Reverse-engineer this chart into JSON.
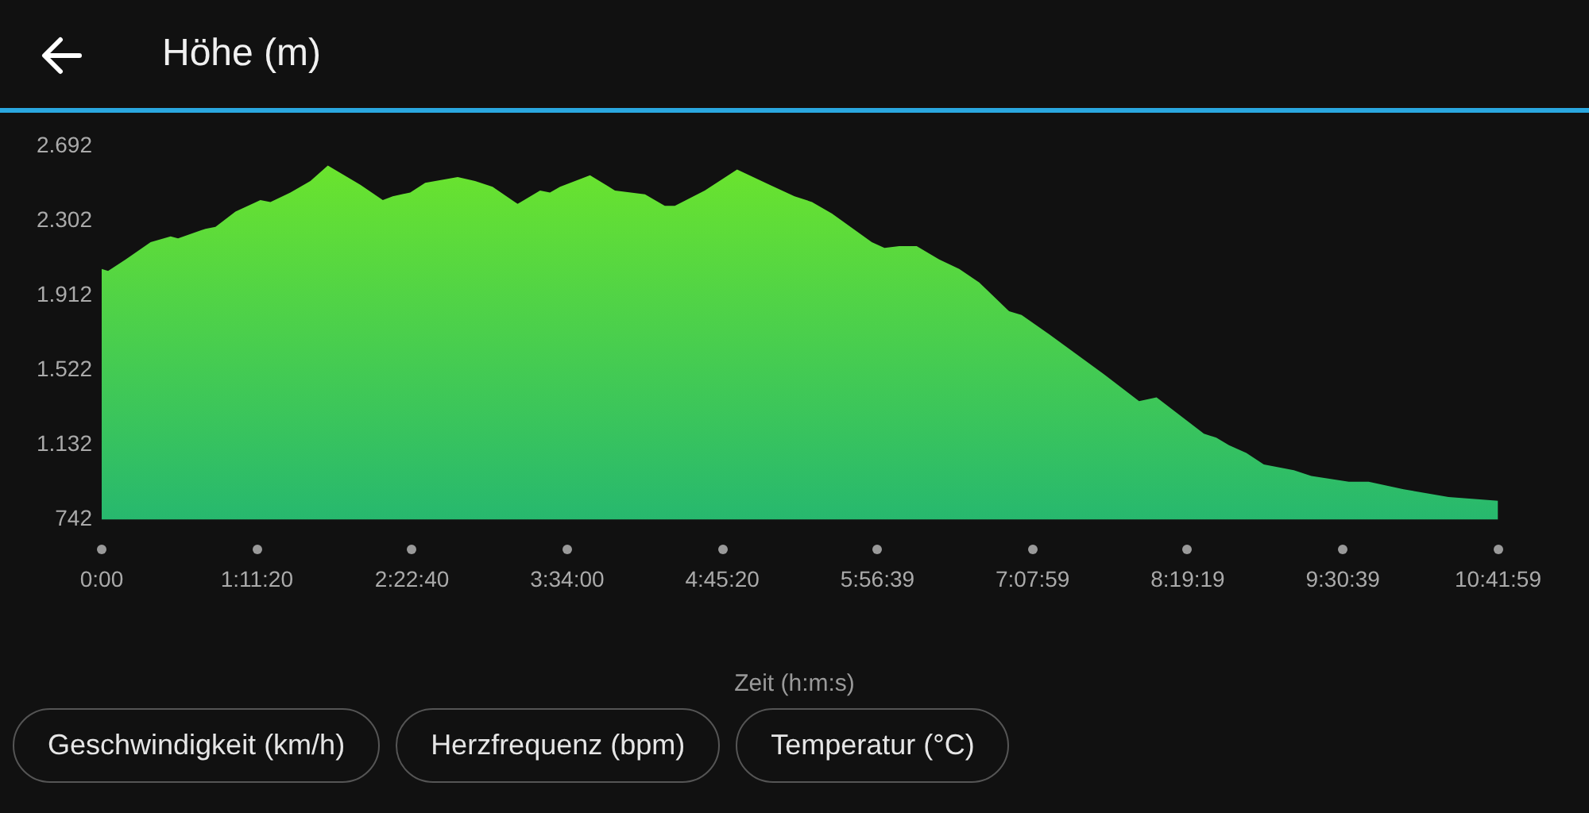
{
  "chart_data": {
    "type": "area",
    "title": "Höhe (m)",
    "xlabel": "Zeit (h:m:s)",
    "annotations": [
      "Geschwindigkeit (km/h)",
      "Herzfrequenz (bpm)",
      "Temperatur (°C)"
    ],
    "xlim": [
      0,
      10.6997
    ],
    "ylim": [
      742,
      2692
    ],
    "xticks": [
      {
        "value": 0,
        "label": "0:00"
      },
      {
        "value": 1.1889,
        "label": "1:11:20"
      },
      {
        "value": 2.3778,
        "label": "2:22:40"
      },
      {
        "value": 3.5667,
        "label": "3:34:00"
      },
      {
        "value": 4.7556,
        "label": "4:45:20"
      },
      {
        "value": 5.9442,
        "label": "5:56:39"
      },
      {
        "value": 7.1331,
        "label": "7:07:59"
      },
      {
        "value": 8.3219,
        "label": "8:19:19"
      },
      {
        "value": 9.5108,
        "label": "9:30:39"
      },
      {
        "value": 10.6997,
        "label": "10:41:59"
      }
    ],
    "yticks": [
      742,
      {
        "value": 1132,
        "label": "1.132"
      },
      {
        "value": 1522,
        "label": "1.522"
      },
      {
        "value": 1912,
        "label": "1.912"
      },
      {
        "value": 2302,
        "label": "2.302"
      },
      {
        "value": 2692,
        "label": "2.692"
      }
    ],
    "grid": false,
    "legend": false,
    "series": [
      {
        "color": "#6ee62a",
        "x": [
          0,
          0.049,
          0.184,
          0.375,
          0.528,
          0.585,
          0.795,
          0.872,
          1.025,
          1.216,
          1.293,
          1.446,
          1.599,
          1.733,
          1.982,
          2.154,
          2.23,
          2.364,
          2.479,
          2.728,
          2.861,
          2.995,
          3.187,
          3.359,
          3.435,
          3.512,
          3.627,
          3.742,
          3.933,
          4.163,
          4.315,
          4.392,
          4.621,
          4.869,
          5.118,
          5.309,
          5.443,
          5.596,
          5.901,
          5.998,
          6.112,
          6.245,
          6.417,
          6.571,
          6.724,
          6.953,
          7.049,
          7.26,
          7.681,
          7.949,
          8.083,
          8.446,
          8.541,
          8.638,
          8.771,
          8.905,
          9.135,
          9.269,
          9.556,
          9.708,
          9.976,
          10.32,
          10.6997
        ],
        "values": [
          2050,
          2040,
          2100,
          2190,
          2220,
          2210,
          2260,
          2270,
          2350,
          2410,
          2400,
          2450,
          2510,
          2590,
          2490,
          2410,
          2430,
          2450,
          2500,
          2530,
          2510,
          2480,
          2390,
          2460,
          2450,
          2480,
          2510,
          2540,
          2460,
          2440,
          2380,
          2380,
          2460,
          2570,
          2490,
          2430,
          2400,
          2340,
          2190,
          2160,
          2170,
          2170,
          2100,
          2050,
          1980,
          1830,
          1810,
          1710,
          1500,
          1360,
          1380,
          1190,
          1170,
          1130,
          1090,
          1030,
          1000,
          970,
          940,
          940,
          900,
          860,
          840
        ]
      }
    ]
  }
}
